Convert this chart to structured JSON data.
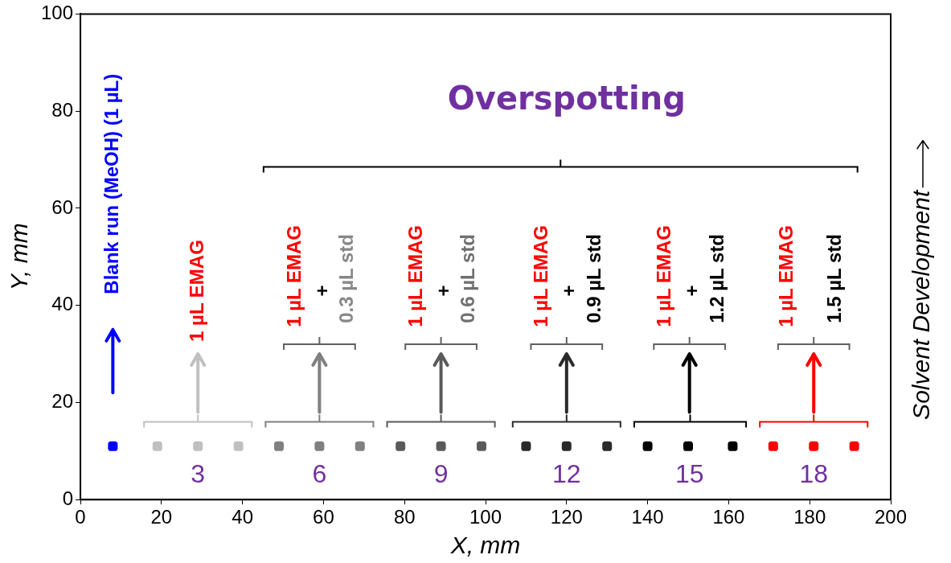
{
  "chart_data": {
    "type": "scatter",
    "xlabel": "X, mm",
    "ylabel": "Y, mm",
    "xlim": [
      0,
      200
    ],
    "xticks": [
      0,
      20,
      40,
      60,
      80,
      100,
      120,
      140,
      160,
      180,
      200
    ],
    "ylim": [
      0,
      100
    ],
    "yticks": [
      0,
      20,
      40,
      60,
      80,
      100
    ],
    "grid": false,
    "legend": false,
    "marker": "square",
    "series": [
      {
        "color": "#0000ff",
        "x": [
          8
        ],
        "values": [
          11
        ]
      },
      {
        "color": "#c0c0c0",
        "x": [
          19,
          29,
          39
        ],
        "values": [
          11,
          11,
          11
        ]
      },
      {
        "color": "#808080",
        "x": [
          49,
          59,
          69
        ],
        "values": [
          11,
          11,
          11
        ]
      },
      {
        "color": "#5a5a5a",
        "x": [
          79,
          89,
          99
        ],
        "values": [
          11,
          11,
          11
        ]
      },
      {
        "color": "#2a2a2a",
        "x": [
          110,
          120,
          130
        ],
        "values": [
          11,
          11,
          11
        ]
      },
      {
        "color": "#000000",
        "x": [
          140,
          150,
          161
        ],
        "values": [
          11,
          11,
          11
        ]
      },
      {
        "color": "#ff0000",
        "x": [
          171,
          181,
          191
        ],
        "values": [
          11,
          11,
          11
        ]
      }
    ],
    "annotations": [
      "Overspotting",
      "Blank run (MeOH) (1 µL)",
      "1 µL EMAG",
      "1 µL EMAG",
      "+",
      "0.3 µL std",
      "1 µL EMAG",
      "+",
      "0.6 µL std",
      "1 µL EMAG",
      "+",
      "0.9 µL std",
      "1 µL EMAG",
      "+",
      "1.2 µL std",
      "1 µL EMAG",
      "1.5 µL std",
      "3",
      "6",
      "9",
      "12",
      "15",
      "18",
      "Solvent Development"
    ]
  }
}
